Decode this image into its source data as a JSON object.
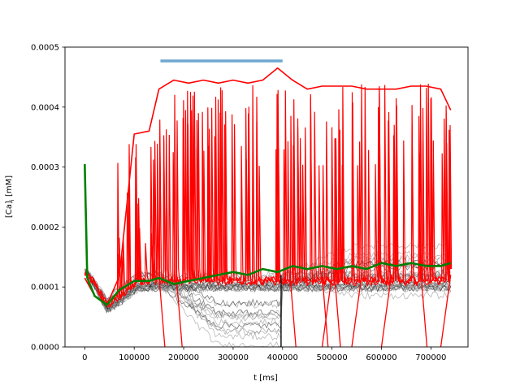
{
  "chart_data": {
    "type": "line",
    "xlabel": "t [ms]",
    "ylabel": "[Ca]",
    "ylabel_sub": "i",
    "ylabel_unit": " [mM]",
    "xlim": [
      -40000,
      775000
    ],
    "ylim": [
      0,
      0.0005
    ],
    "x_ticks": [
      0,
      100000,
      200000,
      300000,
      400000,
      500000,
      600000,
      700000
    ],
    "x_tick_labels": [
      "0",
      "100000",
      "200000",
      "300000",
      "400000",
      "500000",
      "600000",
      "700000"
    ],
    "y_ticks": [
      0,
      0.0001,
      0.0002,
      0.0003,
      0.0004,
      0.0005
    ],
    "y_tick_labels": [
      "0.0000",
      "0.0001",
      "0.0002",
      "0.0003",
      "0.0004",
      "0.0005"
    ],
    "grid": false,
    "stimulus_bar": {
      "x_start": 153000,
      "x_end": 400000,
      "y": 0.000477,
      "color": "#6fa8d0"
    },
    "series": [
      {
        "color": "#ff0000",
        "x": [
          0,
          20000,
          45000,
          70000,
          100000,
          130000,
          150000,
          180000,
          210000,
          240000,
          270000,
          300000,
          330000,
          360000,
          390000,
          420000,
          450000,
          480000,
          510000,
          540000,
          570000,
          600000,
          630000,
          660000,
          690000,
          720000,
          740000
        ],
        "y": [
          0.000115,
          8.5e-05,
          7e-05,
          0.000118,
          0.000355,
          0.00036,
          0.00043,
          0.000445,
          0.00044,
          0.000445,
          0.00044,
          0.000445,
          0.00044,
          0.000445,
          0.000465,
          0.000445,
          0.00043,
          0.000435,
          0.000435,
          0.000435,
          0.00043,
          0.00043,
          0.00043,
          0.000435,
          0.000435,
          0.00043,
          0.000395
        ]
      },
      {
        "color": "#008000",
        "x": [
          0,
          5000,
          20000,
          45000,
          70000,
          100000,
          130000,
          150000,
          180000,
          210000,
          240000,
          270000,
          300000,
          330000,
          360000,
          390000,
          420000,
          450000,
          480000,
          510000,
          540000,
          570000,
          600000,
          630000,
          660000,
          690000,
          720000,
          740000
        ],
        "y": [
          0.000305,
          0.000115,
          8.5e-05,
          7e-05,
          9.5e-05,
          0.00011,
          0.00011,
          0.000115,
          0.000105,
          0.00011,
          0.000115,
          0.00012,
          0.000125,
          0.00012,
          0.00013,
          0.000125,
          0.000135,
          0.00013,
          0.000135,
          0.00013,
          0.000135,
          0.00013,
          0.00014,
          0.000135,
          0.00014,
          0.000135,
          0.000135,
          0.00014
        ]
      }
    ]
  }
}
